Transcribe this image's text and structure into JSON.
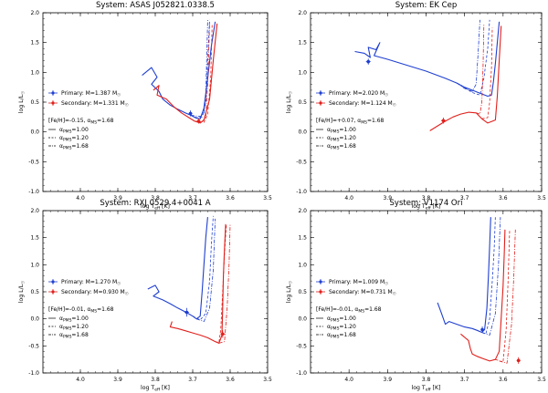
{
  "chart_data": [
    {
      "type": "line",
      "title": "System: ASAS J052821.0338.5",
      "xlabel": "log T",
      "xlabel_sub": "eff",
      "xlabel_unit": " [K]",
      "ylabel": "log L/L",
      "ylabel_sub": "☉",
      "xlim": [
        4.1,
        3.5
      ],
      "ylim": [
        -1.0,
        2.0
      ],
      "xticks": [
        "4.0",
        "3.9",
        "3.8",
        "3.7",
        "3.6",
        "3.5"
      ],
      "yticks": [
        "-1.0",
        "-0.5",
        "0.0",
        "0.5",
        "1.0",
        "1.5",
        "2.0"
      ],
      "colors": {
        "primary": "#1f3fd0",
        "secondary": "#e0201c"
      },
      "legend": {
        "primary": "Primary: M=1.387 M☉",
        "secondary": "Secondary: M=1.331 M☉",
        "feh": "[Fe/H]=-0.15, αMS=1.68",
        "alphas": [
          "αPMS=1.00",
          "αPMS=1.20",
          "αPMS=1.68"
        ]
      },
      "stars": {
        "primary": {
          "x": 3.706,
          "y": 0.31,
          "xerr": 0.005,
          "yerr": 0.05
        },
        "secondary": {
          "x": 3.684,
          "y": 0.18,
          "xerr": 0.004,
          "yerr": 0.04
        }
      },
      "series": [
        {
          "name": "Primary αPMS=1.00",
          "color": "primary",
          "style": "solid",
          "x": [
            3.835,
            3.81,
            3.795,
            3.81,
            3.79,
            3.78,
            3.76,
            3.74,
            3.72,
            3.705,
            3.69,
            3.68,
            3.67,
            3.66,
            3.65,
            3.64
          ],
          "y": [
            0.95,
            1.08,
            0.92,
            0.8,
            0.68,
            0.55,
            0.45,
            0.38,
            0.32,
            0.28,
            0.23,
            0.22,
            0.4,
            0.9,
            1.45,
            1.85
          ]
        },
        {
          "name": "Primary αPMS=1.20",
          "color": "primary",
          "style": "dashed",
          "x": [
            3.705,
            3.69,
            3.675,
            3.665,
            3.66,
            3.655
          ],
          "y": [
            0.28,
            0.24,
            0.25,
            0.5,
            1.2,
            1.88
          ]
        },
        {
          "name": "Primary αPMS=1.68",
          "color": "primary",
          "style": "dashdot",
          "x": [
            3.705,
            3.68,
            3.67,
            3.665,
            3.66
          ],
          "y": [
            0.28,
            0.26,
            0.3,
            0.6,
            1.88
          ]
        },
        {
          "name": "Secondary αPMS=1.00",
          "color": "secondary",
          "style": "solid",
          "x": [
            3.805,
            3.79,
            3.795,
            3.77,
            3.75,
            3.73,
            3.71,
            3.695,
            3.68,
            3.67,
            3.655,
            3.645,
            3.635
          ],
          "y": [
            0.7,
            0.78,
            0.62,
            0.55,
            0.42,
            0.32,
            0.24,
            0.18,
            0.15,
            0.2,
            0.55,
            1.2,
            1.82
          ]
        },
        {
          "name": "Secondary αPMS=1.20",
          "color": "secondary",
          "style": "dashed",
          "x": [
            3.695,
            3.67,
            3.66,
            3.652,
            3.648
          ],
          "y": [
            0.18,
            0.16,
            0.3,
            0.9,
            1.82
          ]
        },
        {
          "name": "Secondary αPMS=1.68",
          "color": "secondary",
          "style": "dashdot",
          "x": [
            3.695,
            3.675,
            3.665,
            3.66,
            3.655
          ],
          "y": [
            0.18,
            0.17,
            0.25,
            0.8,
            1.82
          ]
        }
      ]
    },
    {
      "type": "line",
      "title": "System: EK Cep",
      "xlabel": "log T",
      "xlabel_sub": "eff",
      "xlabel_unit": " [K]",
      "ylabel": "log L/L",
      "ylabel_sub": "☉",
      "xlim": [
        4.1,
        3.5
      ],
      "ylim": [
        -1.0,
        2.0
      ],
      "xticks": [
        "4.0",
        "3.9",
        "3.8",
        "3.7",
        "3.6",
        "3.5"
      ],
      "yticks": [
        "-1.0",
        "-0.5",
        "0.0",
        "0.5",
        "1.0",
        "1.5",
        "2.0"
      ],
      "colors": {
        "primary": "#1f3fd0",
        "secondary": "#e0201c"
      },
      "legend": {
        "primary": "Primary: M=2.020 M☉",
        "secondary": "Secondary: M=1.124 M☉",
        "feh": "[Fe/H]=+0.07, αMS=1.68",
        "alphas": [
          "αPMS=1.00",
          "αPMS=1.20",
          "αPMS=1.68"
        ]
      },
      "stars": {
        "primary": {
          "x": 3.95,
          "y": 1.18,
          "xerr": 0.006,
          "yerr": 0.05
        },
        "secondary": {
          "x": 3.755,
          "y": 0.19,
          "xerr": 0.006,
          "yerr": 0.05
        }
      },
      "series": [
        {
          "name": "Primary αPMS=1.00",
          "color": "primary",
          "style": "solid",
          "x": [
            3.985,
            3.96,
            3.945,
            3.95,
            3.93,
            3.92,
            3.935,
            3.9,
            3.85,
            3.8,
            3.75,
            3.72,
            3.7,
            3.68,
            3.66,
            3.64,
            3.63,
            3.625,
            3.62,
            3.615,
            3.61
          ],
          "y": [
            1.35,
            1.32,
            1.25,
            1.42,
            1.38,
            1.5,
            1.28,
            1.22,
            1.12,
            1.02,
            0.9,
            0.82,
            0.75,
            0.7,
            0.65,
            0.6,
            0.62,
            0.85,
            1.15,
            1.5,
            1.85
          ]
        },
        {
          "name": "Primary αPMS=1.20",
          "color": "primary",
          "style": "dashed",
          "x": [
            3.72,
            3.7,
            3.68,
            3.66,
            3.65,
            3.64,
            3.635
          ],
          "y": [
            0.82,
            0.74,
            0.66,
            0.62,
            0.9,
            1.4,
            1.88
          ]
        },
        {
          "name": "Primary αPMS=1.68",
          "color": "primary",
          "style": "dashdot",
          "x": [
            3.72,
            3.7,
            3.68,
            3.67,
            3.665,
            3.66
          ],
          "y": [
            0.82,
            0.73,
            0.68,
            0.8,
            1.3,
            1.88
          ]
        },
        {
          "name": "Secondary αPMS=1.00",
          "color": "secondary",
          "style": "solid",
          "x": [
            3.79,
            3.77,
            3.75,
            3.73,
            3.71,
            3.69,
            3.67,
            3.655,
            3.64,
            3.62,
            3.615,
            3.61,
            3.605
          ],
          "y": [
            0.02,
            0.1,
            0.18,
            0.25,
            0.3,
            0.33,
            0.32,
            0.22,
            0.15,
            0.2,
            0.6,
            1.2,
            1.78
          ]
        },
        {
          "name": "Secondary αPMS=1.20",
          "color": "secondary",
          "style": "dashed",
          "x": [
            3.655,
            3.64,
            3.635,
            3.63,
            3.628
          ],
          "y": [
            0.22,
            0.24,
            0.5,
            1.1,
            1.75
          ]
        },
        {
          "name": "Secondary αPMS=1.68",
          "color": "secondary",
          "style": "dashdot",
          "x": [
            3.67,
            3.66,
            3.655,
            3.652,
            3.65
          ],
          "y": [
            0.32,
            0.3,
            0.5,
            1.1,
            1.8
          ]
        }
      ]
    },
    {
      "type": "line",
      "title": "System: RXJ 0529.4+0041 A",
      "xlabel": "log T",
      "xlabel_sub": "eff",
      "xlabel_unit": " [K]",
      "ylabel": "log L/L",
      "ylabel_sub": "☉",
      "xlim": [
        4.1,
        3.5
      ],
      "ylim": [
        -1.0,
        2.0
      ],
      "xticks": [
        "4.0",
        "3.9",
        "3.8",
        "3.7",
        "3.6",
        "3.5"
      ],
      "yticks": [
        "-1.0",
        "-0.5",
        "0.0",
        "0.5",
        "1.0",
        "1.5",
        "2.0"
      ],
      "colors": {
        "primary": "#1f3fd0",
        "secondary": "#e0201c"
      },
      "legend": {
        "primary": "Primary: M=1.270 M☉",
        "secondary": "Secondary: M=0.930 M☉",
        "feh": "[Fe/H]=-0.01, αMS=1.68",
        "alphas": [
          "αPMS=1.00",
          "αPMS=1.20",
          "αPMS=1.68"
        ]
      },
      "stars": {
        "primary": {
          "x": 3.716,
          "y": 0.12,
          "xerr": 0.006,
          "yerr": 0.08
        },
        "secondary": {
          "x": 3.62,
          "y": -0.28,
          "xerr": 0.006,
          "yerr": 0.07
        }
      },
      "series": [
        {
          "name": "Primary αPMS=1.00",
          "color": "primary",
          "style": "solid",
          "x": [
            3.82,
            3.8,
            3.79,
            3.805,
            3.78,
            3.76,
            3.74,
            3.72,
            3.7,
            3.69,
            3.68,
            3.675,
            3.67,
            3.665,
            3.66
          ],
          "y": [
            0.55,
            0.62,
            0.5,
            0.42,
            0.35,
            0.28,
            0.2,
            0.13,
            0.05,
            0.0,
            0.05,
            0.5,
            1.0,
            1.5,
            1.88
          ]
        },
        {
          "name": "Primary αPMS=1.20",
          "color": "primary",
          "style": "dashed",
          "x": [
            3.7,
            3.68,
            3.665,
            3.655,
            3.65,
            3.645
          ],
          "y": [
            0.05,
            -0.02,
            0.1,
            0.7,
            1.4,
            1.9
          ]
        },
        {
          "name": "Primary αPMS=1.68",
          "color": "primary",
          "style": "dashdot",
          "x": [
            3.69,
            3.67,
            3.655,
            3.645,
            3.64
          ],
          "y": [
            0.0,
            -0.05,
            0.2,
            0.9,
            1.85
          ]
        },
        {
          "name": "Secondary αPMS=1.00",
          "color": "secondary",
          "style": "solid",
          "x": [
            3.755,
            3.76,
            3.74,
            3.72,
            3.7,
            3.68,
            3.66,
            3.64,
            3.63,
            3.622,
            3.62,
            3.618,
            3.615,
            3.612
          ],
          "y": [
            -0.05,
            -0.15,
            -0.18,
            -0.22,
            -0.26,
            -0.3,
            -0.35,
            -0.42,
            -0.45,
            -0.3,
            0.2,
            0.8,
            1.3,
            1.75
          ]
        },
        {
          "name": "Secondary αPMS=1.20",
          "color": "secondary",
          "style": "dashed",
          "x": [
            3.64,
            3.63,
            3.625,
            3.62,
            3.615,
            3.61
          ],
          "y": [
            -0.42,
            -0.44,
            -0.2,
            0.5,
            1.2,
            1.75
          ]
        },
        {
          "name": "Secondary αPMS=1.68",
          "color": "secondary",
          "style": "dashdot",
          "x": [
            3.63,
            3.615,
            3.608,
            3.603,
            3.6
          ],
          "y": [
            -0.45,
            -0.42,
            0.2,
            1.0,
            1.75
          ]
        }
      ]
    },
    {
      "type": "line",
      "title": "System: V1174 Ori",
      "xlabel": "log T",
      "xlabel_sub": "eff",
      "xlabel_unit": " [K]",
      "ylabel": "log L/L",
      "ylabel_sub": "☉",
      "xlim": [
        4.1,
        3.5
      ],
      "ylim": [
        -1.0,
        2.0
      ],
      "xticks": [
        "4.0",
        "3.9",
        "3.8",
        "3.7",
        "3.6",
        "3.5"
      ],
      "yticks": [
        "-1.0",
        "-0.5",
        "0.0",
        "0.5",
        "1.0",
        "1.5",
        "2.0"
      ],
      "colors": {
        "primary": "#1f3fd0",
        "secondary": "#e0201c"
      },
      "legend": {
        "primary": "Primary: M=1.009 M☉",
        "secondary": "Secondary: M=0.731 M☉",
        "feh": "[Fe/H]=-0.01, αMS=1.68",
        "alphas": [
          "αPMS=1.00",
          "αPMS=1.20",
          "αPMS=1.68"
        ]
      },
      "stars": {
        "primary": {
          "x": 3.654,
          "y": -0.2,
          "xerr": 0.004,
          "yerr": 0.06
        },
        "secondary": {
          "x": 3.56,
          "y": -0.77,
          "xerr": 0.005,
          "yerr": 0.06
        }
      },
      "series": [
        {
          "name": "Primary αPMS=1.00",
          "color": "primary",
          "style": "solid",
          "x": [
            3.77,
            3.76,
            3.75,
            3.74,
            3.72,
            3.7,
            3.68,
            3.665,
            3.655,
            3.648,
            3.642,
            3.638,
            3.635,
            3.632
          ],
          "y": [
            0.3,
            0.1,
            -0.1,
            -0.05,
            -0.1,
            -0.15,
            -0.18,
            -0.22,
            -0.25,
            -0.2,
            0.2,
            0.8,
            1.35,
            1.88
          ]
        },
        {
          "name": "Primary αPMS=1.20",
          "color": "primary",
          "style": "dashed",
          "x": [
            3.665,
            3.645,
            3.635,
            3.628,
            3.623,
            3.62
          ],
          "y": [
            -0.22,
            -0.28,
            0.0,
            0.7,
            1.3,
            1.9
          ]
        },
        {
          "name": "Primary αPMS=1.68",
          "color": "primary",
          "style": "dashdot",
          "x": [
            3.655,
            3.635,
            3.62,
            3.612,
            3.607
          ],
          "y": [
            -0.25,
            -0.3,
            0.1,
            1.0,
            1.88
          ]
        },
        {
          "name": "Secondary αPMS=1.00",
          "color": "secondary",
          "style": "solid",
          "x": [
            3.71,
            3.69,
            3.685,
            3.68,
            3.665,
            3.65,
            3.635,
            3.62,
            3.61,
            3.605,
            3.6,
            3.597,
            3.595
          ],
          "y": [
            -0.28,
            -0.4,
            -0.55,
            -0.65,
            -0.7,
            -0.74,
            -0.78,
            -0.75,
            -0.6,
            0.0,
            0.6,
            1.2,
            1.65
          ]
        },
        {
          "name": "Secondary αPMS=1.20",
          "color": "secondary",
          "style": "dashed",
          "x": [
            3.62,
            3.6,
            3.592,
            3.587,
            3.583
          ],
          "y": [
            -0.75,
            -0.8,
            -0.2,
            0.7,
            1.65
          ]
        },
        {
          "name": "Secondary αPMS=1.68",
          "color": "secondary",
          "style": "dashdot",
          "x": [
            3.61,
            3.59,
            3.578,
            3.572,
            3.568
          ],
          "y": [
            -0.78,
            -0.82,
            -0.1,
            0.8,
            1.65
          ]
        }
      ]
    }
  ]
}
